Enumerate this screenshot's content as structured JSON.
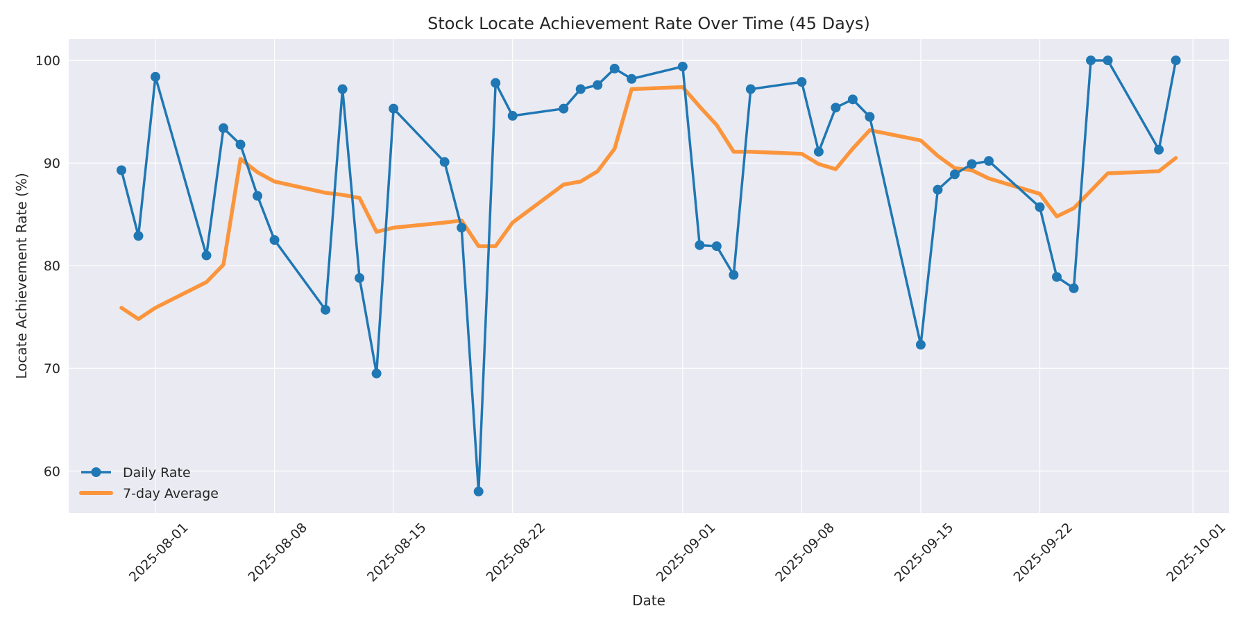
{
  "chart_data": {
    "type": "line",
    "title": "Stock Locate Achievement Rate Over Time (45 Days)",
    "xlabel": "Date",
    "ylabel": "Locate Achievement Rate (%)",
    "ylim": [
      55.9,
      102.1
    ],
    "xlim": [
      "2025-07-26",
      "2025-10-03"
    ],
    "grid": true,
    "legend_position": "lower left",
    "yticks": [
      60,
      70,
      80,
      90,
      100
    ],
    "xticks": [
      "2025-08-01",
      "2025-08-08",
      "2025-08-15",
      "2025-08-22",
      "2025-09-01",
      "2025-09-08",
      "2025-09-15",
      "2025-09-22",
      "2025-10-01"
    ],
    "x": [
      "2025-07-30",
      "2025-07-31",
      "2025-08-01",
      "2025-08-04",
      "2025-08-05",
      "2025-08-06",
      "2025-08-07",
      "2025-08-08",
      "2025-08-11",
      "2025-08-12",
      "2025-08-13",
      "2025-08-14",
      "2025-08-15",
      "2025-08-18",
      "2025-08-19",
      "2025-08-20",
      "2025-08-21",
      "2025-08-22",
      "2025-08-25",
      "2025-08-26",
      "2025-08-27",
      "2025-08-28",
      "2025-08-29",
      "2025-09-01",
      "2025-09-02",
      "2025-09-03",
      "2025-09-04",
      "2025-09-05",
      "2025-09-08",
      "2025-09-09",
      "2025-09-10",
      "2025-09-11",
      "2025-09-12",
      "2025-09-15",
      "2025-09-16",
      "2025-09-17",
      "2025-09-18",
      "2025-09-19",
      "2025-09-22",
      "2025-09-23",
      "2025-09-24",
      "2025-09-25",
      "2025-09-26",
      "2025-09-29",
      "2025-09-30"
    ],
    "series": [
      {
        "name": "Daily Rate",
        "color": "#1f77b4",
        "marker": "circle",
        "values": [
          89.3,
          82.9,
          98.4,
          81.0,
          93.4,
          91.8,
          86.8,
          82.5,
          75.7,
          97.2,
          78.8,
          69.5,
          95.3,
          90.1,
          83.7,
          58.0,
          97.8,
          94.6,
          95.3,
          97.2,
          97.6,
          99.2,
          98.2,
          99.4,
          82.0,
          81.9,
          79.1,
          97.2,
          97.9,
          91.1,
          95.4,
          96.2,
          94.5,
          72.3,
          87.4,
          88.9,
          89.9,
          90.2,
          85.7,
          78.9,
          77.8,
          100.0,
          100.0,
          91.3,
          100.0
        ]
      },
      {
        "name": "7-day Average",
        "color": "#ff7f0e",
        "marker": "none",
        "values": [
          75.9,
          74.8,
          75.9,
          78.4,
          80.1,
          90.4,
          89.1,
          88.2,
          87.1,
          86.9,
          86.6,
          83.3,
          83.7,
          84.2,
          84.4,
          81.9,
          81.9,
          84.2,
          87.9,
          88.2,
          89.2,
          91.4,
          97.2,
          97.4,
          95.5,
          93.7,
          91.1,
          91.1,
          90.9,
          89.9,
          89.4,
          91.4,
          93.2,
          92.2,
          90.7,
          89.5,
          89.3,
          88.5,
          87.0,
          84.8,
          85.6,
          87.3,
          89.0,
          89.2,
          90.5
        ]
      }
    ]
  },
  "colors": {
    "plot_background": "#eaeaf2",
    "grid": "#ffffff",
    "text": "#262626"
  }
}
